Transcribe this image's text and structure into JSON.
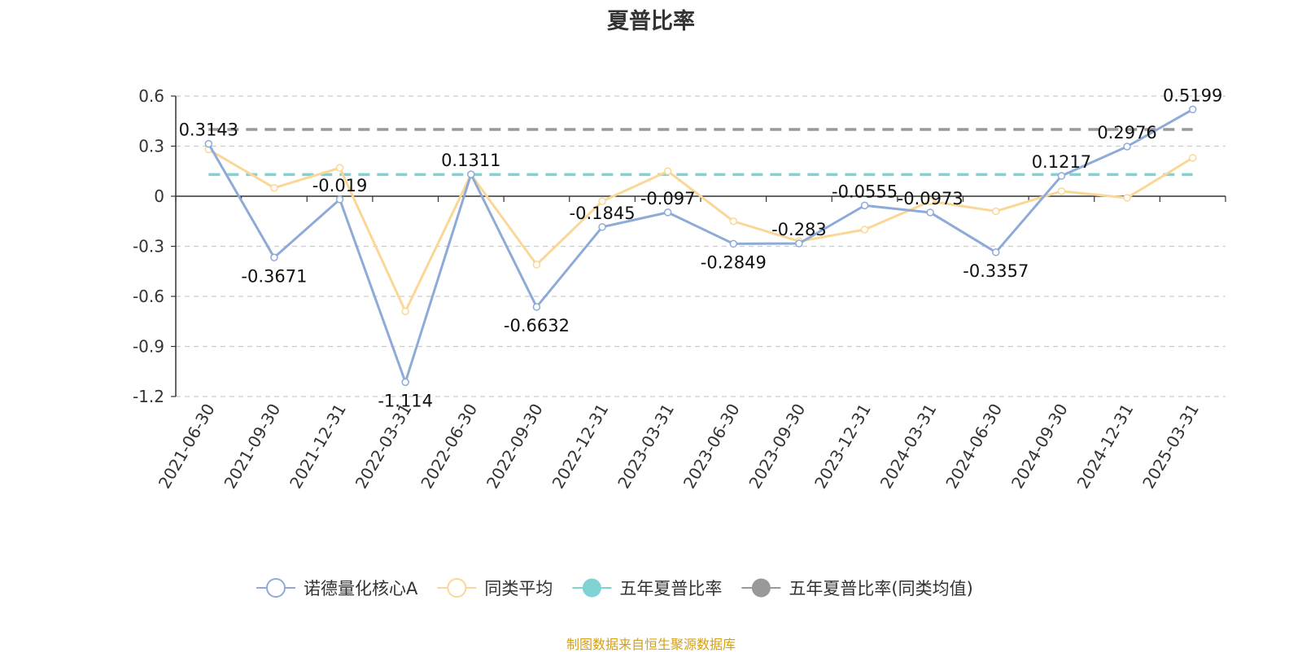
{
  "chart_data": {
    "type": "line",
    "title": "夏普比率",
    "x": [
      "2021-06-30",
      "2021-09-30",
      "2021-12-31",
      "2022-03-31",
      "2022-06-30",
      "2022-09-30",
      "2022-12-31",
      "2023-03-31",
      "2023-06-30",
      "2023-09-30",
      "2023-12-31",
      "2024-03-31",
      "2024-06-30",
      "2024-09-30",
      "2024-12-31",
      "2025-03-31"
    ],
    "ylim": [
      -1.2,
      0.6
    ],
    "yticks": [
      "0.6",
      "0.3",
      "0",
      "-0.3",
      "-0.6",
      "-0.9",
      "-1.2"
    ],
    "grid": "horizontal-dashed",
    "legend_position": "bottom",
    "series": [
      {
        "name": "诺德量化核心A",
        "color": "#8eabd8",
        "values": [
          0.3143,
          -0.3671,
          -0.019,
          -1.114,
          0.1311,
          -0.6632,
          -0.1845,
          -0.097,
          -0.2849,
          -0.283,
          -0.0555,
          -0.0973,
          -0.3357,
          0.1217,
          0.2976,
          0.5199
        ],
        "labels": [
          "0.3143",
          "-0.3671",
          "-0.019",
          "-1.114",
          "0.1311",
          "-0.6632",
          "-0.1845",
          "-0.097",
          "-0.2849",
          "-0.283",
          "-0.0555",
          "-0.0973",
          "-0.3357",
          "0.1217",
          "0.2976",
          "0.5199"
        ]
      },
      {
        "name": "同类平均",
        "color": "#fad797",
        "values": [
          0.28,
          0.05,
          0.17,
          -0.69,
          0.13,
          -0.41,
          -0.03,
          0.15,
          -0.15,
          -0.27,
          -0.2,
          -0.03,
          -0.09,
          0.03,
          -0.01,
          0.23
        ]
      },
      {
        "name": "五年夏普比率",
        "color": "#7fd3d4",
        "type": "constant",
        "value": 0.13
      },
      {
        "name": "五年夏普比率(同类均值)",
        "color": "#999999",
        "type": "constant",
        "value": 0.4
      }
    ]
  },
  "source_note": "制图数据来自恒生聚源数据库"
}
